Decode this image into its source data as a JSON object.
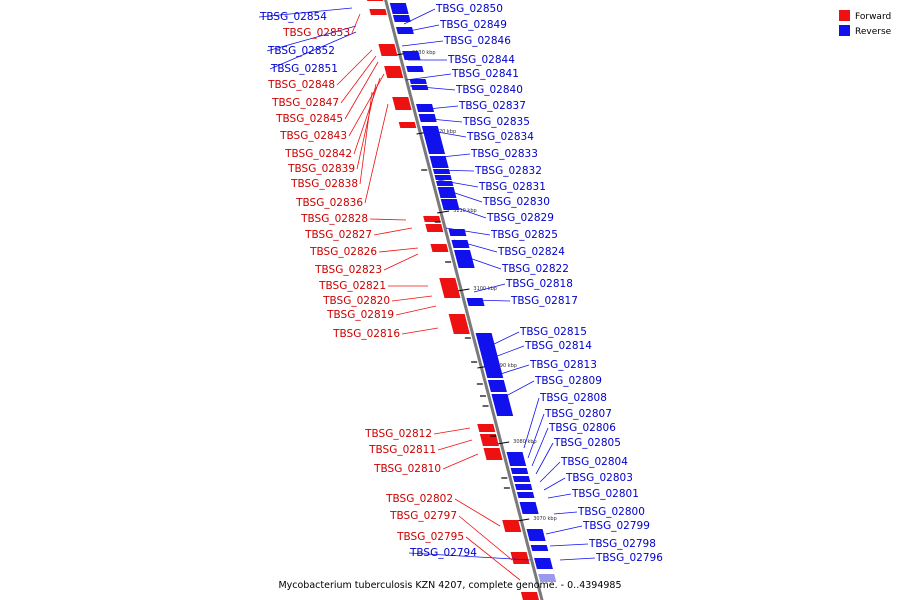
{
  "caption": "Mycobacterium tuberculosis KZN 4207, complete genome. - 0..4394985",
  "legend": {
    "forward_label": "Forward",
    "reverse_label": "Reverse",
    "forward_color": "#ee1111",
    "reverse_color": "#1111ee"
  },
  "colors": {
    "forward_label": "#cc0000",
    "reverse_label": "#0000cc",
    "backbone": "#7a7a7a",
    "faded_reverse": "#9999ee"
  },
  "scale_marks": [
    {
      "label": "3130 kbp"
    },
    {
      "label": "3120 kbp"
    },
    {
      "label": "3110 kbp"
    },
    {
      "label": "3100 kbp"
    },
    {
      "label": "3090 kbp"
    },
    {
      "label": "3080 kbp"
    },
    {
      "label": "3070 kbp"
    }
  ],
  "genes_reverse": [
    {
      "name": "TBSG_02854"
    },
    {
      "name": "TBSG_02850"
    },
    {
      "name": "TBSG_02849"
    },
    {
      "name": "TBSG_02846"
    },
    {
      "name": "TBSG_02852"
    },
    {
      "name": "TBSG_02844"
    },
    {
      "name": "TBSG_02851"
    },
    {
      "name": "TBSG_02841"
    },
    {
      "name": "TBSG_02840"
    },
    {
      "name": "TBSG_02837"
    },
    {
      "name": "TBSG_02835"
    },
    {
      "name": "TBSG_02834"
    },
    {
      "name": "TBSG_02833"
    },
    {
      "name": "TBSG_02832"
    },
    {
      "name": "TBSG_02831"
    },
    {
      "name": "TBSG_02830"
    },
    {
      "name": "TBSG_02829"
    },
    {
      "name": "TBSG_02825"
    },
    {
      "name": "TBSG_02824"
    },
    {
      "name": "TBSG_02822"
    },
    {
      "name": "TBSG_02818"
    },
    {
      "name": "TBSG_02817"
    },
    {
      "name": "TBSG_02815"
    },
    {
      "name": "TBSG_02814"
    },
    {
      "name": "TBSG_02813"
    },
    {
      "name": "TBSG_02809"
    },
    {
      "name": "TBSG_02808"
    },
    {
      "name": "TBSG_02807"
    },
    {
      "name": "TBSG_02806"
    },
    {
      "name": "TBSG_02805"
    },
    {
      "name": "TBSG_02804"
    },
    {
      "name": "TBSG_02803"
    },
    {
      "name": "TBSG_02801"
    },
    {
      "name": "TBSG_02800"
    },
    {
      "name": "TBSG_02799"
    },
    {
      "name": "TBSG_02798"
    },
    {
      "name": "TBSG_02796"
    },
    {
      "name": "TBSG_02794"
    }
  ],
  "genes_forward": [
    {
      "name": "TBSG_02853"
    },
    {
      "name": "TBSG_02848"
    },
    {
      "name": "TBSG_02847"
    },
    {
      "name": "TBSG_02845"
    },
    {
      "name": "TBSG_02843"
    },
    {
      "name": "TBSG_02842"
    },
    {
      "name": "TBSG_02839"
    },
    {
      "name": "TBSG_02838"
    },
    {
      "name": "TBSG_02836"
    },
    {
      "name": "TBSG_02828"
    },
    {
      "name": "TBSG_02827"
    },
    {
      "name": "TBSG_02826"
    },
    {
      "name": "TBSG_02823"
    },
    {
      "name": "TBSG_02821"
    },
    {
      "name": "TBSG_02820"
    },
    {
      "name": "TBSG_02819"
    },
    {
      "name": "TBSG_02816"
    },
    {
      "name": "TBSG_02812"
    },
    {
      "name": "TBSG_02811"
    },
    {
      "name": "TBSG_02810"
    },
    {
      "name": "TBSG_02802"
    },
    {
      "name": "TBSG_02797"
    },
    {
      "name": "TBSG_02795"
    }
  ]
}
